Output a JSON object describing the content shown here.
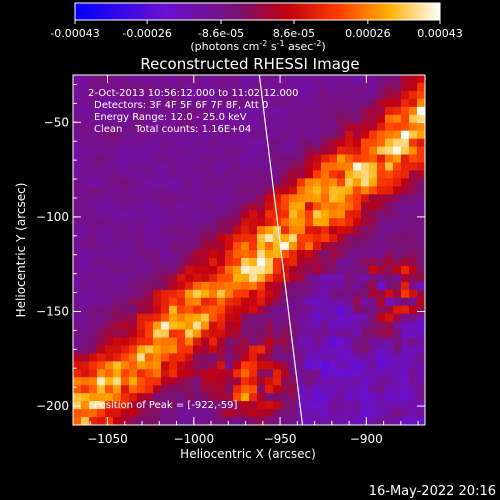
{
  "chart_data": {
    "type": "heatmap",
    "title": "Reconstructed RHESSI Image",
    "xlabel": "Heliocentric X (arcsec)",
    "ylabel": "Heliocentric Y (arcsec)",
    "xlim": [
      -1070,
      -866
    ],
    "ylim": [
      -210,
      -25
    ],
    "xticks": [
      -1050,
      -1000,
      -950,
      -900
    ],
    "yticks": [
      -50,
      -100,
      -150,
      -200
    ],
    "colorbar": {
      "label": "(photons cm",
      "label_sup1": "-2",
      "label_mid": " s",
      "label_sup2": "-1",
      "label_mid2": " asec",
      "label_sup3": "-2",
      "label_end": ")",
      "range": [
        -0.00043,
        0.00043
      ],
      "ticks": [
        -0.00043,
        -0.00026,
        -8.6e-05,
        8.6e-05,
        0.00026,
        0.00043
      ],
      "tick_labels": [
        "-0.00043",
        "-0.00026",
        "-8.6e-05",
        "8.6e-05",
        "0.00026",
        "0.00043"
      ],
      "colormap": [
        "#0000ff",
        "#5500e0",
        "#8a2dc0",
        "#800080",
        "#b30000",
        "#ff2a00",
        "#ff8000",
        "#ffd000",
        "#ffffff"
      ]
    },
    "annotations": [
      "2-Oct-2013 10:56:12.000 to 11:02:12.000",
      "Detectors: 3F 4F 5F 6F 7F 8F, Att 0",
      "Energy Range: 12.0 - 25.0 keV",
      "Clean    Total counts: 1.16E+04"
    ],
    "peak_text": "Position of Peak = [-922,-59]",
    "peak": [
      -922,
      -59
    ],
    "grid": false,
    "limb_line": [
      [
        -962,
        -25
      ],
      [
        -937,
        -210
      ]
    ]
  },
  "footer": {
    "date": "16-May-2022 20:16"
  }
}
